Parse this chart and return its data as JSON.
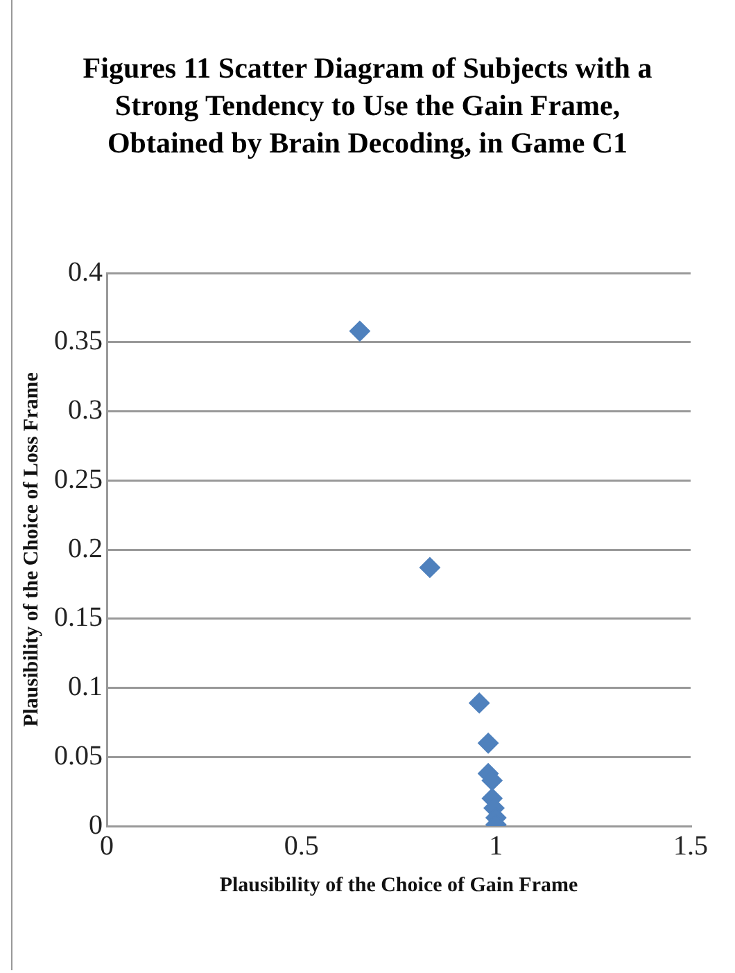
{
  "chart_data": {
    "type": "scatter",
    "title": "Figures 11 Scatter Diagram of Subjects with a Strong Tendency to Use the Gain Frame, Obtained by Brain Decoding, in Game C1",
    "xlabel": "Plausibility of the Choice of Gain Frame",
    "ylabel": "Plausibility of the Choice of Loss Frame",
    "series": [
      {
        "color": "#4f81bd",
        "x": [
          0.65,
          0.83,
          0.957,
          0.98,
          0.98,
          0.99,
          0.99,
          0.995,
          1.0,
          1.0
        ],
        "values": [
          0.358,
          0.187,
          0.089,
          0.06,
          0.038,
          0.033,
          0.02,
          0.013,
          0.006,
          0.001
        ]
      }
    ],
    "xlim": [
      0,
      1.5
    ],
    "xticks": [
      0,
      0.5,
      1,
      1.5
    ],
    "ylim": [
      0,
      0.4
    ],
    "yticks": [
      0,
      0.05,
      0.1,
      0.15,
      0.2,
      0.25,
      0.3,
      0.35,
      0.4
    ],
    "grid": "y",
    "legend": false,
    "marker": "diamond"
  }
}
